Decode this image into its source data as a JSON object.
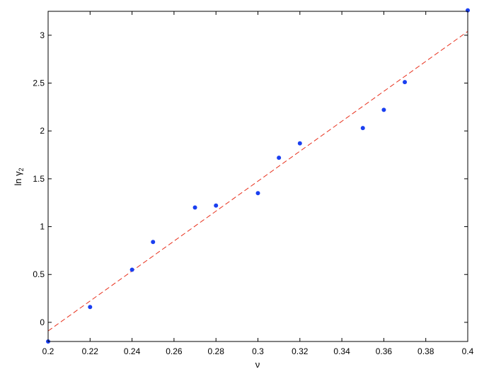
{
  "chart_data": {
    "type": "scatter",
    "title": "",
    "xlabel": "ν",
    "ylabel": "ln γ",
    "ylabel_subscript": "2",
    "xlim": [
      0.2,
      0.4
    ],
    "ylim": [
      -0.2,
      3.25
    ],
    "xticks": [
      0.2,
      0.22,
      0.24,
      0.26,
      0.28,
      0.3,
      0.32,
      0.34,
      0.36,
      0.38,
      0.4
    ],
    "xtick_labels": [
      "0.2",
      "0.22",
      "0.24",
      "0.26",
      "0.28",
      "0.3",
      "0.32",
      "0.34",
      "0.36",
      "0.38",
      "0.4"
    ],
    "yticks": [
      0,
      0.5,
      1,
      1.5,
      2,
      2.5,
      3
    ],
    "ytick_labels": [
      "0",
      "0.5",
      "1",
      "1.5",
      "2",
      "2.5",
      "3"
    ],
    "grid": false,
    "series": [
      {
        "kind": "points",
        "color": "#1a3ff0",
        "x": [
          0.2,
          0.22,
          0.24,
          0.25,
          0.27,
          0.28,
          0.3,
          0.31,
          0.32,
          0.35,
          0.36,
          0.37,
          0.4
        ],
        "y": [
          -0.2,
          0.16,
          0.55,
          0.84,
          1.2,
          1.22,
          1.35,
          1.72,
          1.87,
          2.03,
          2.22,
          2.51,
          3.26
        ]
      },
      {
        "kind": "fit-line",
        "color": "#e8301c",
        "dash": "dashed",
        "x": [
          0.2,
          0.4
        ],
        "y": [
          -0.09,
          3.04
        ]
      }
    ]
  }
}
